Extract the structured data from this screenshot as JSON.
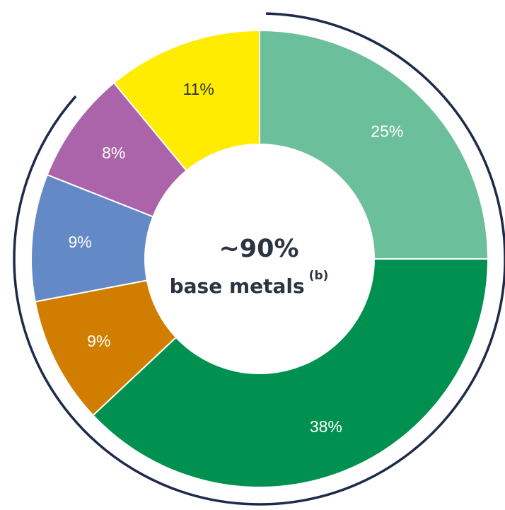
{
  "chart_data": {
    "type": "pie",
    "variant": "donut",
    "slices": [
      {
        "label": "25%",
        "value": 25,
        "color": "#6bbf9b",
        "label_color": "#ffffff"
      },
      {
        "label": "38%",
        "value": 38,
        "color": "#009150",
        "label_color": "#ffffff"
      },
      {
        "label": "9%",
        "value": 9,
        "color": "#d07d00",
        "label_color": "#ffffff"
      },
      {
        "label": "9%",
        "value": 9,
        "color": "#6489c7",
        "label_color": "#ffffff"
      },
      {
        "label": "8%",
        "value": 8,
        "color": "#ab64a9",
        "label_color": "#ffffff"
      },
      {
        "label": "11%",
        "value": 11,
        "color": "#ffec00",
        "label_color": "#2b3440"
      }
    ],
    "center_value": "~90%",
    "center_label": "base metals",
    "center_superscript": "(b)",
    "outer_ring_color": "#1e2a4a",
    "outer_ring_covers_percent": 90
  }
}
